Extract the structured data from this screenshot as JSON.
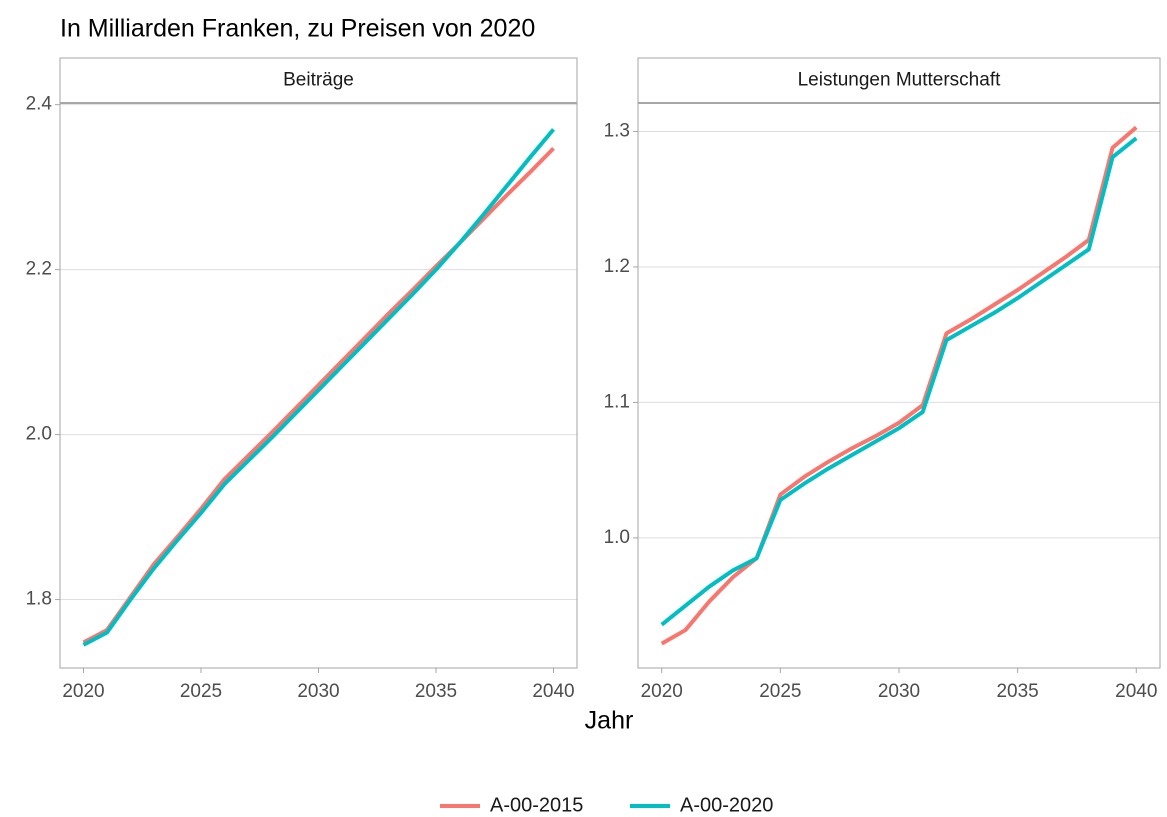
{
  "title": "In Milliarden Franken, zu Preisen von 2020",
  "x_label": "Jahr",
  "chart_data": [
    {
      "type": "line",
      "title": "Beiträge",
      "x": [
        2020,
        2021,
        2022,
        2023,
        2024,
        2025,
        2026,
        2027,
        2028,
        2029,
        2030,
        2031,
        2032,
        2033,
        2034,
        2035,
        2036,
        2037,
        2038,
        2039,
        2040
      ],
      "series": [
        {
          "name": "A-00-2015",
          "color": "#F8766D",
          "values": [
            1.748,
            1.763,
            1.803,
            1.843,
            1.876,
            1.91,
            1.946,
            1.974,
            2.002,
            2.031,
            2.06,
            2.089,
            2.118,
            2.147,
            2.175,
            2.204,
            2.232,
            2.261,
            2.29,
            2.318,
            2.347
          ]
        },
        {
          "name": "A-00-2020",
          "color": "#00BFC4",
          "values": [
            1.745,
            1.76,
            1.8,
            1.838,
            1.872,
            1.905,
            1.94,
            1.968,
            1.996,
            2.025,
            2.054,
            2.083,
            2.112,
            2.141,
            2.17,
            2.2,
            2.232,
            2.266,
            2.301,
            2.336,
            2.37
          ]
        }
      ],
      "xlim": [
        2019,
        2041
      ],
      "xticks": [
        2020,
        2025,
        2030,
        2035,
        2040
      ],
      "ylim": [
        1.717,
        2.402
      ],
      "yticks": [
        1.8,
        {
          "value": 2,
          "label": "2.0"
        },
        2.2,
        2.4
      ],
      "grid": true
    },
    {
      "type": "line",
      "title": "Leistungen Mutterschaft",
      "x": [
        2020,
        2021,
        2022,
        2023,
        2024,
        2025,
        2026,
        2027,
        2028,
        2029,
        2030,
        2031,
        2032,
        2033,
        2034,
        2035,
        2036,
        2037,
        2038,
        2039,
        2040
      ],
      "series": [
        {
          "name": "A-00-2015",
          "color": "#F8766D",
          "values": [
            0.922,
            0.932,
            0.953,
            0.971,
            0.985,
            1.032,
            1.045,
            1.056,
            1.066,
            1.075,
            1.085,
            1.098,
            1.151,
            1.161,
            1.172,
            1.183,
            1.195,
            1.207,
            1.22,
            1.288,
            1.303
          ]
        },
        {
          "name": "A-00-2020",
          "color": "#00BFC4",
          "values": [
            0.936,
            0.95,
            0.964,
            0.976,
            0.985,
            1.028,
            1.04,
            1.051,
            1.061,
            1.071,
            1.081,
            1.093,
            1.146,
            1.156,
            1.166,
            1.177,
            1.189,
            1.201,
            1.213,
            1.281,
            1.295
          ]
        }
      ],
      "xlim": [
        2019,
        2041
      ],
      "xticks": [
        2020,
        2025,
        2030,
        2035,
        2040
      ],
      "ylim": [
        0.904,
        1.321
      ],
      "yticks": [
        {
          "value": 1,
          "label": "1.0"
        },
        1.1,
        1.2,
        1.3
      ],
      "grid": true
    }
  ]
}
